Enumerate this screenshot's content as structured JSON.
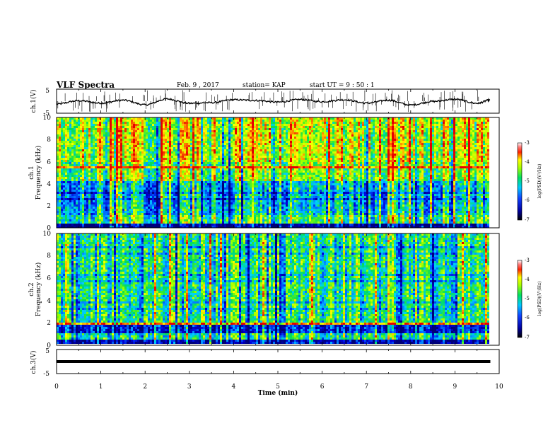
{
  "header": {
    "title": "VLF Spectra",
    "date": "Feb. 9 , 2017",
    "station": "station= KAP",
    "start_ut": "start  UT =   9 : 50 : 1"
  },
  "chart_data": [
    {
      "type": "line",
      "panel": "ch1-waveform",
      "ylabel": "ch.1(V)",
      "ylim": [
        -5,
        5
      ],
      "yticks": [
        "5",
        "-5"
      ],
      "xlim": [
        0,
        10
      ],
      "series": [
        {
          "x": [
            0,
            0.5,
            1,
            1.5,
            2,
            2.5,
            3,
            3.5,
            4,
            4.5,
            5,
            5.5,
            6,
            6.5,
            7,
            7.5,
            8,
            8.5,
            9,
            9.5,
            9.8
          ],
          "values": [
            -1.2,
            0.2,
            -0.8,
            0.4,
            -1.5,
            0.9,
            -0.9,
            -0.6,
            0.6,
            0.3,
            -0.4,
            0.7,
            -0.2,
            0.6,
            -0.8,
            0.4,
            -1.6,
            -0.1,
            0.8,
            -0.9,
            0.5
          ]
        }
      ]
    },
    {
      "type": "heatmap",
      "panel": "ch1-spectrogram",
      "ylabel": "ch.1\nFrequency (kHz)",
      "ylim": [
        0,
        10
      ],
      "yticks": [
        "0",
        "2",
        "4",
        "6",
        "8",
        "10"
      ],
      "xlim": [
        0,
        10
      ],
      "colorbar": {
        "label": "log(PSD)(V²/Hz)",
        "ticks": [
          "-3",
          "-4",
          "-5",
          "-6",
          "-7"
        ],
        "range": [
          -7,
          -3
        ]
      }
    },
    {
      "type": "heatmap",
      "panel": "ch2-spectrogram",
      "ylabel": "ch.2\nFrequency (kHz)",
      "ylim": [
        0,
        10
      ],
      "yticks": [
        "0",
        "2",
        "4",
        "6",
        "8",
        "10"
      ],
      "xlim": [
        0,
        10
      ],
      "colorbar": {
        "label": "log(PSD)(V²/Hz)",
        "ticks": [
          "-3",
          "-4",
          "-5",
          "-6",
          "-7"
        ],
        "range": [
          -7,
          -3
        ]
      }
    },
    {
      "type": "line",
      "panel": "ch3-waveform",
      "ylabel": "ch.3(V)",
      "ylim": [
        -5,
        5
      ],
      "yticks": [
        "5",
        "-5"
      ],
      "xlim": [
        0,
        10
      ],
      "series": [
        {
          "x": [
            0,
            9.8
          ],
          "values": [
            0,
            0
          ]
        }
      ]
    }
  ],
  "x_axis": {
    "label": "Time (min)",
    "ticks": [
      "0",
      "1",
      "2",
      "3",
      "4",
      "5",
      "6",
      "7",
      "8",
      "9",
      "10"
    ]
  }
}
